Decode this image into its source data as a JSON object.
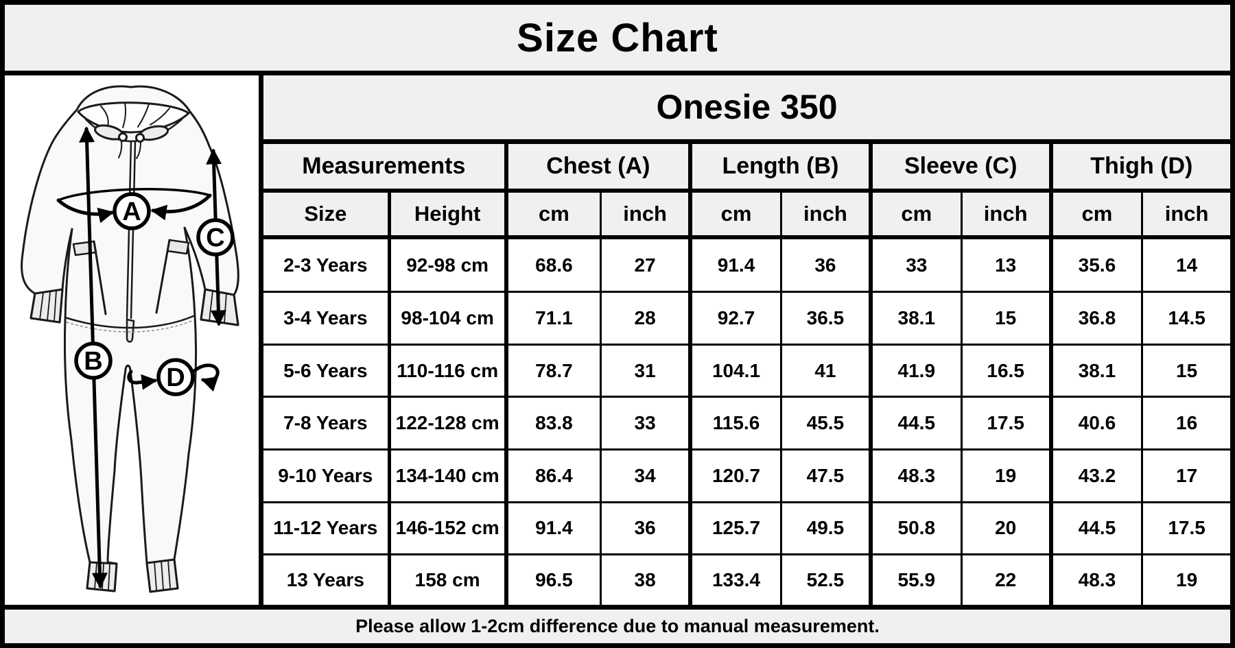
{
  "title": "Size Chart",
  "product_title": "Onesie 350",
  "chart_data": {
    "type": "table",
    "title": "Size Chart",
    "subtitle": "Onesie 350",
    "column_groups": [
      "Measurements",
      "Chest (A)",
      "Length (B)",
      "Sleeve (C)",
      "Thigh (D)"
    ],
    "unit_row": [
      "Size",
      "Height",
      "cm",
      "inch",
      "cm",
      "inch",
      "cm",
      "inch",
      "cm",
      "inch"
    ],
    "rows": [
      [
        "2-3 Years",
        "92-98 cm",
        "68.6",
        "27",
        "91.4",
        "36",
        "33",
        "13",
        "35.6",
        "14"
      ],
      [
        "3-4 Years",
        "98-104 cm",
        "71.1",
        "28",
        "92.7",
        "36.5",
        "38.1",
        "15",
        "36.8",
        "14.5"
      ],
      [
        "5-6 Years",
        "110-116 cm",
        "78.7",
        "31",
        "104.1",
        "41",
        "41.9",
        "16.5",
        "38.1",
        "15"
      ],
      [
        "7-8 Years",
        "122-128 cm",
        "83.8",
        "33",
        "115.6",
        "45.5",
        "44.5",
        "17.5",
        "40.6",
        "16"
      ],
      [
        "9-10 Years",
        "134-140 cm",
        "86.4",
        "34",
        "120.7",
        "47.5",
        "48.3",
        "19",
        "43.2",
        "17"
      ],
      [
        "11-12 Years",
        "146-152 cm",
        "91.4",
        "36",
        "125.7",
        "49.5",
        "50.8",
        "20",
        "44.5",
        "17.5"
      ],
      [
        "13 Years",
        "158 cm",
        "96.5",
        "38",
        "133.4",
        "52.5",
        "55.9",
        "22",
        "48.3",
        "19"
      ]
    ],
    "note": "Please allow 1-2cm difference due to manual measurement."
  },
  "diagram": {
    "labels": [
      "A",
      "B",
      "C",
      "D"
    ]
  },
  "footer_note": "Please allow 1-2cm difference due to manual measurement.",
  "colors": {
    "header_bg": "#f0f0f0",
    "cell_bg": "#ffffff",
    "border": "#000000",
    "text": "#000000"
  }
}
